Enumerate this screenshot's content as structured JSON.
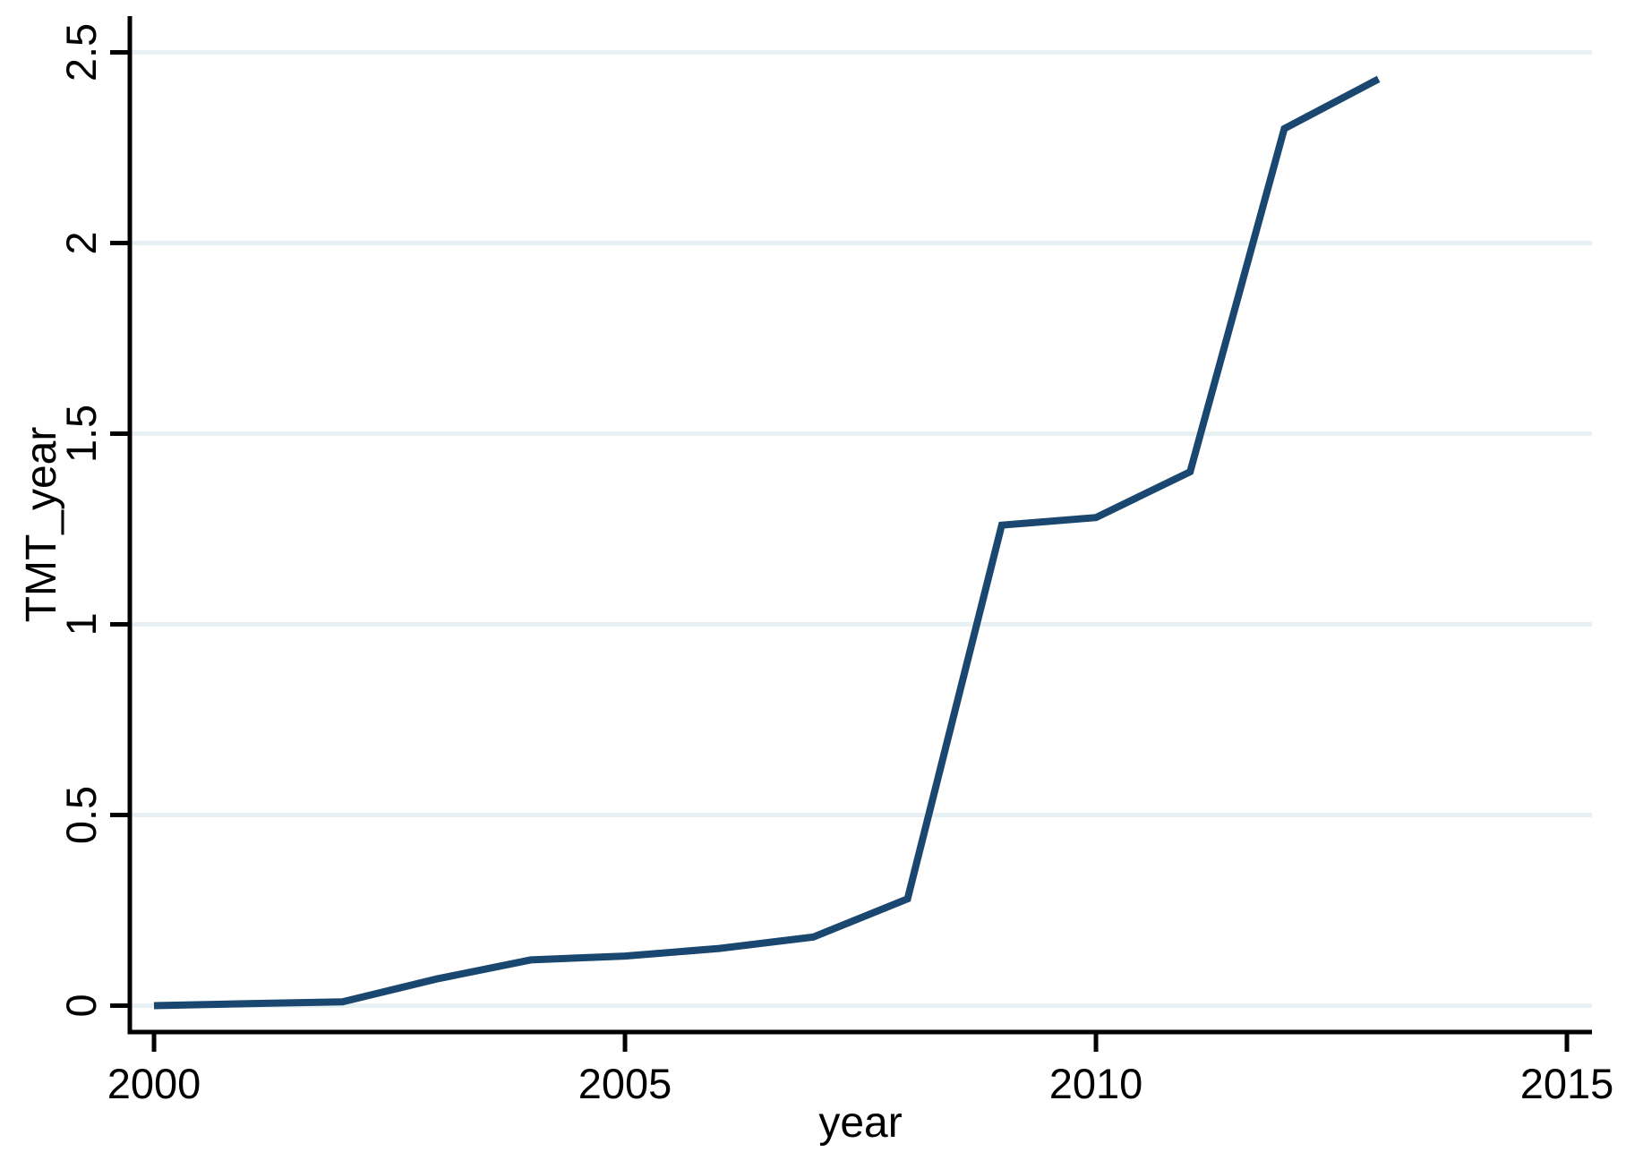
{
  "chart_data": {
    "type": "line",
    "title": "",
    "xlabel": "year",
    "ylabel": "TMT_year",
    "x": [
      2000,
      2001,
      2002,
      2003,
      2004,
      2005,
      2006,
      2007,
      2008,
      2009,
      2010,
      2011,
      2012,
      2013
    ],
    "series": [
      {
        "name": "TMT_year",
        "values": [
          0,
          0.005,
          0.01,
          0.07,
          0.12,
          0.13,
          0.15,
          0.18,
          0.28,
          1.26,
          1.28,
          1.4,
          2.3,
          2.43
        ]
      }
    ],
    "xlim": [
      1999.743,
      2015.266
    ],
    "ylim": [
      -0.0693,
      2.5951
    ],
    "x_ticks": {
      "values": [
        2000,
        2005,
        2010,
        2015
      ],
      "labels": [
        "2000",
        "2005",
        "2010",
        "2015"
      ]
    },
    "y_ticks": {
      "values": [
        0,
        0.5,
        1,
        1.5,
        2,
        2.5
      ],
      "labels": [
        "0",
        "0.5",
        "1",
        "1.5",
        "2",
        "2.5"
      ]
    },
    "grid": "horizontal-on",
    "legend": "none",
    "colors": {
      "line": "#1a476f",
      "grid": "#e7f0f2",
      "axis": "#000000",
      "background": "#ffffff"
    }
  }
}
